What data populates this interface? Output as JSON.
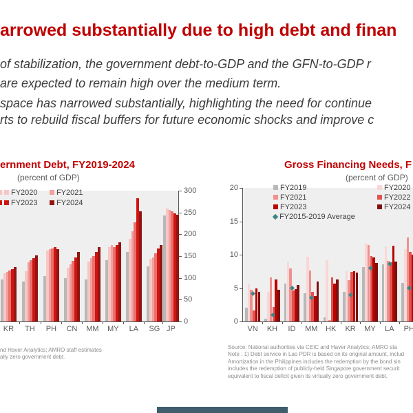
{
  "page": {
    "title": "arrowed substantially due to high debt and finan",
    "paragraph1_line1": "of stabilization, the government debt-to-GDP and the GFN-to-GDP r",
    "paragraph1_line2": "are expected to remain high over the medium term.",
    "paragraph2_line1": "space has narrowed substantially, highlighting the need for continue",
    "paragraph2_line2": "rts to rebuild fiscal buffers for future economic shocks and improve c",
    "accent_color": "#c00000",
    "footer_bar_color": "#3f5d6d"
  },
  "chart_data": [
    {
      "type": "bar",
      "title": "ernment Debt, FY2019-2024",
      "subtitle": "(percent of GDP)",
      "ylabel": "",
      "xlabel": "",
      "ylim": [
        0,
        300
      ],
      "yticks": [
        0,
        50,
        100,
        150,
        200,
        250,
        300
      ],
      "axis_side": "right",
      "grid": false,
      "categories": [
        "KR",
        "TH",
        "PH",
        "CN",
        "MM",
        "MY",
        "LA",
        "SG",
        "JP"
      ],
      "series": [
        {
          "name": "FY2019",
          "color": "#b8b8b8",
          "values": [
            96,
            91,
            105,
            100,
            96,
            140,
            160,
            126,
            243
          ]
        },
        {
          "name": "FY2020",
          "color": "#f7c6c5",
          "values": [
            111,
            115,
            162,
            123,
            138,
            171,
            190,
            143,
            259
          ]
        },
        {
          "name": "FY2021",
          "color": "#f2a09d",
          "values": [
            114,
            136,
            166,
            131,
            145,
            176,
            207,
            147,
            256
          ]
        },
        {
          "name": "FY2022",
          "color": "#ea706d",
          "values": [
            117,
            141,
            168,
            139,
            150,
            170,
            228,
            156,
            252
          ]
        },
        {
          "name": "FY2023",
          "color": "#cf1511",
          "values": [
            120,
            145,
            170,
            147,
            160,
            175,
            283,
            168,
            248
          ]
        },
        {
          "name": "FY2024",
          "color": "#931511",
          "values": [
            125,
            152,
            166,
            160,
            170,
            181,
            253,
            176,
            244
          ]
        }
      ],
      "legend": [
        {
          "label": "FY2020",
          "color": "#f7c6c5",
          "shape": "square"
        },
        {
          "label": "FY2021",
          "color": "#f2a09d",
          "shape": "square"
        },
        {
          "label": "FY2023",
          "color": "#cf1511",
          "shape": "square"
        },
        {
          "label": "FY2024",
          "color": "#931511",
          "shape": "square"
        }
      ],
      "source_lines": [
        "nd Haver Analytics; AMRO staff estimates",
        "ally zero government debt."
      ]
    },
    {
      "type": "bar",
      "title": "Gross Financing Needs, F",
      "subtitle": "(percent of GDP)",
      "ylabel": "",
      "xlabel": "",
      "ylim": [
        0,
        20
      ],
      "yticks": [
        0,
        5,
        10,
        15,
        20
      ],
      "axis_side": "left",
      "grid": false,
      "categories": [
        "VN",
        "KH",
        "ID",
        "MM",
        "HK",
        "KR",
        "MY",
        "LA",
        "PH"
      ],
      "series": [
        {
          "name": "FY2019",
          "color": "#b8b8b8",
          "values": [
            2.1,
            0.4,
            5.7,
            4.2,
            0.6,
            4.4,
            8.1,
            8.6,
            5.8
          ]
        },
        {
          "name": "FY2020",
          "color": "#f9d7d6",
          "values": [
            5.7,
            4.4,
            9.0,
            9.7,
            9.2,
            7.5,
            11.6,
            11.2,
            10.8
          ]
        },
        {
          "name": "FY2021",
          "color": "#f0918f",
          "values": [
            4.7,
            6.6,
            7.9,
            7.6,
            0.2,
            6.2,
            11.4,
            9.1,
            12.6
          ]
        },
        {
          "name": "FY2022",
          "color": "#e25350",
          "values": [
            1.6,
            2.2,
            4.6,
            4.4,
            6.6,
            7.4,
            9.8,
            8.9,
            10.4
          ]
        },
        {
          "name": "FY2023",
          "color": "#b70400",
          "values": [
            5.0,
            6.3,
            4.8,
            3.8,
            5.7,
            7.5,
            9.6,
            11.3,
            10.0
          ]
        },
        {
          "name": "FY2024",
          "color": "#7e100e",
          "values": [
            4.4,
            4.7,
            5.5,
            6.0,
            6.3,
            7.3,
            8.8,
            9.0,
            9.9
          ]
        }
      ],
      "average_series": {
        "name": "FY2015-2019 Average",
        "color": "#3e8588",
        "values": [
          4.2,
          1.0,
          5.1,
          3.6,
          null,
          4.0,
          8.0,
          8.7,
          5.1
        ]
      },
      "legend": [
        {
          "label": "FY2019",
          "color": "#b8b8b8",
          "shape": "square"
        },
        {
          "label": "FY2020",
          "color": "#f9d7d6",
          "shape": "square"
        },
        {
          "label": "FY2021",
          "color": "#f0918f",
          "shape": "square"
        },
        {
          "label": "FY2022",
          "color": "#e25350",
          "shape": "square"
        },
        {
          "label": "FY2023",
          "color": "#b70400",
          "shape": "square"
        },
        {
          "label": "FY2024",
          "color": "#7e100e",
          "shape": "square"
        },
        {
          "label": "FY2015-2019 Average",
          "color": "#3e8588",
          "shape": "diamond"
        }
      ],
      "source_lines": [
        "Source: National authorities via CEIC and Haver Analytics; AMRO sta",
        "Note : 1) Debt service in Lao PDR is based on its original amount, includ",
        "Amortization in the Philippines includes the redemption by the bond sin",
        "includes the redemption of publicly-held Singapore government securit",
        "equivalent to fiscal deficit given its virtually zero government debt."
      ]
    }
  ]
}
